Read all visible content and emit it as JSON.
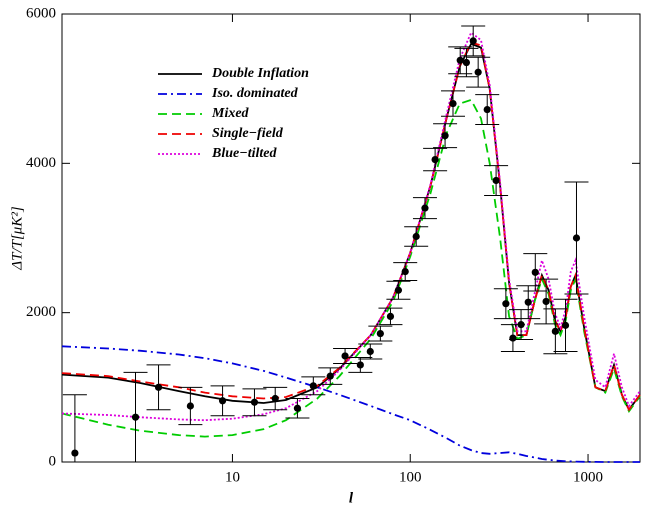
{
  "chart_data": {
    "type": "line",
    "x_label": "l",
    "y_label": "ΔT/T[μK²]",
    "x_scale": "log",
    "xlim": [
      1.1,
      1960
    ],
    "xticks": [
      10,
      100,
      1000
    ],
    "ylim": [
      0,
      6000
    ],
    "yticks": [
      0,
      2000,
      4000,
      6000
    ],
    "legend": "upper left",
    "x": [
      1.1,
      2,
      3,
      5,
      7,
      10,
      15,
      20,
      30,
      40,
      60,
      80,
      100,
      130,
      160,
      190,
      220,
      250,
      280,
      320,
      360,
      400,
      450,
      500,
      550,
      600,
      650,
      700,
      750,
      800,
      850,
      950,
      1100,
      1250,
      1400,
      1550,
      1700,
      1960
    ],
    "series": [
      {
        "name": "Double Inflation",
        "color": "#000000",
        "dash": "solid",
        "values": [
          1170,
          1130,
          1060,
          950,
          880,
          820,
          790,
          830,
          1000,
          1250,
          1700,
          2200,
          2800,
          3700,
          4600,
          5300,
          5600,
          5550,
          5000,
          3700,
          2400,
          1700,
          1700,
          2150,
          2500,
          2300,
          1900,
          1750,
          1950,
          2350,
          2500,
          1800,
          1000,
          950,
          1300,
          900,
          700,
          900
        ]
      },
      {
        "name": "Iso. dominated",
        "color": "#0000dd",
        "dash": "dashdot",
        "values": [
          1550,
          1520,
          1490,
          1440,
          1390,
          1320,
          1220,
          1130,
          1000,
          900,
          750,
          640,
          560,
          430,
          320,
          220,
          160,
          120,
          110,
          120,
          130,
          110,
          80,
          60,
          40,
          30,
          20,
          15,
          10,
          8,
          5,
          3,
          1,
          0,
          0,
          0,
          0,
          0
        ]
      },
      {
        "name": "Mixed",
        "color": "#00cc00",
        "dash": "dashed",
        "values": [
          650,
          500,
          420,
          360,
          340,
          360,
          440,
          560,
          850,
          1150,
          1650,
          2150,
          2750,
          3600,
          4400,
          4800,
          4850,
          4600,
          4000,
          3000,
          1950,
          1650,
          1700,
          2150,
          2450,
          2250,
          1850,
          1700,
          1900,
          2300,
          2450,
          1750,
          1000,
          930,
          1250,
          880,
          680,
          880
        ]
      },
      {
        "name": "Single−field",
        "color": "#ee0000",
        "dash": "dashed",
        "values": [
          1190,
          1150,
          1080,
          1000,
          930,
          880,
          850,
          870,
          1020,
          1260,
          1700,
          2200,
          2800,
          3700,
          4600,
          5300,
          5620,
          5580,
          5000,
          3700,
          2400,
          1700,
          1700,
          2150,
          2500,
          2300,
          1900,
          1750,
          1950,
          2350,
          2500,
          1800,
          1000,
          950,
          1300,
          900,
          700,
          900
        ]
      },
      {
        "name": "Blue−tilted",
        "color": "#dd00dd",
        "dash": "dotted",
        "values": [
          650,
          630,
          600,
          570,
          560,
          580,
          640,
          720,
          950,
          1230,
          1700,
          2200,
          2800,
          3720,
          4650,
          5400,
          5750,
          5650,
          5050,
          3750,
          2450,
          1750,
          1750,
          2250,
          2700,
          2450,
          2000,
          1800,
          2050,
          2550,
          2700,
          1950,
          1100,
          1000,
          1450,
          1000,
          750,
          950
        ]
      }
    ],
    "observations": {
      "color": "#000000",
      "x": [
        1.3,
        2.85,
        3.84,
        5.8,
        8.8,
        13.3,
        17.4,
        23.2,
        28.5,
        35.5,
        43,
        52.4,
        59.6,
        67.9,
        77.4,
        85.8,
        93.7,
        108,
        121,
        138,
        157,
        174,
        191,
        207,
        226,
        241,
        271,
        304,
        345,
        378,
        420,
        461,
        505,
        581,
        655,
        747,
        861
      ],
      "values": [
        120,
        600,
        1000,
        750,
        820,
        800,
        850,
        720,
        1020,
        1150,
        1420,
        1300,
        1480,
        1720,
        1950,
        2300,
        2550,
        3020,
        3400,
        4050,
        4370,
        4800,
        5380,
        5350,
        5640,
        5220,
        4720,
        3770,
        2120,
        1660,
        1840,
        2140,
        2540,
        2150,
        1750,
        1830,
        3000
      ],
      "errors": [
        780,
        600,
        300,
        250,
        200,
        180,
        150,
        130,
        120,
        110,
        100,
        100,
        100,
        100,
        110,
        120,
        120,
        130,
        140,
        150,
        160,
        170,
        180,
        190,
        200,
        200,
        200,
        200,
        200,
        180,
        200,
        220,
        250,
        300,
        300,
        350,
        750
      ]
    }
  }
}
